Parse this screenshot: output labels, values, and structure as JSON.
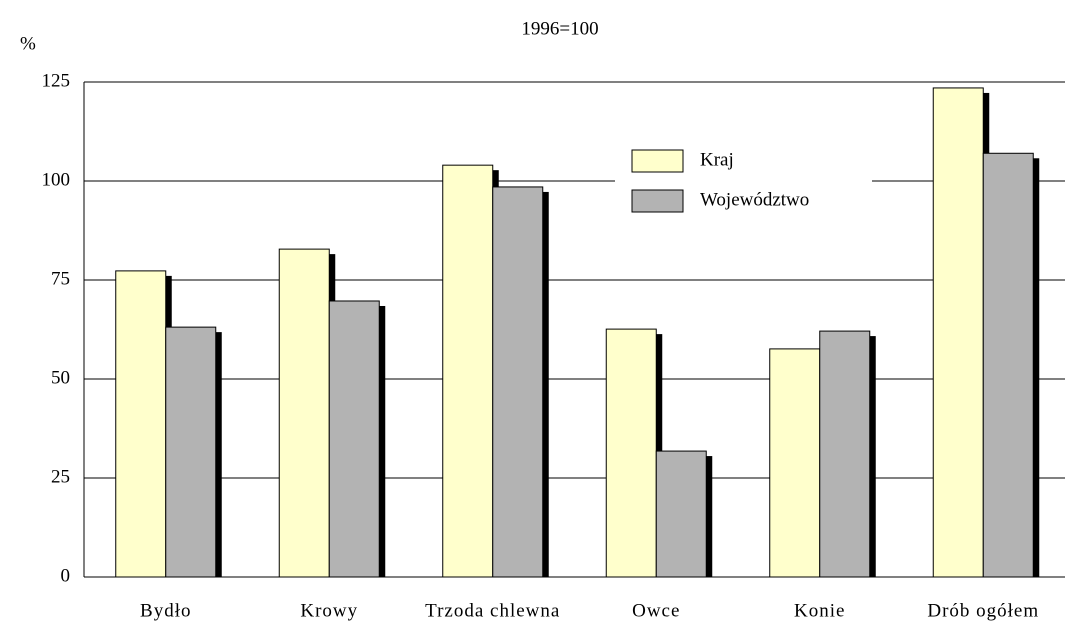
{
  "chart_data": {
    "type": "bar",
    "title": "1996=100",
    "y_label": "%",
    "categories": [
      "Bydło",
      "Krowy",
      "Trzoda chlewna",
      "Owce",
      "Konie",
      "Drób ogółem"
    ],
    "series": [
      {
        "name": "Kraj",
        "color": "#ffffcc",
        "values": [
          77.3,
          82.8,
          104,
          62.6,
          57.6,
          123.5
        ]
      },
      {
        "name": "Województwo",
        "color": "#b3b3b3",
        "values": [
          63.1,
          69.7,
          98.5,
          31.8,
          62.1,
          107
        ]
      }
    ],
    "ylim": [
      0,
      125
    ],
    "yticks": [
      0,
      25,
      50,
      75,
      100,
      125
    ],
    "grid": true
  }
}
